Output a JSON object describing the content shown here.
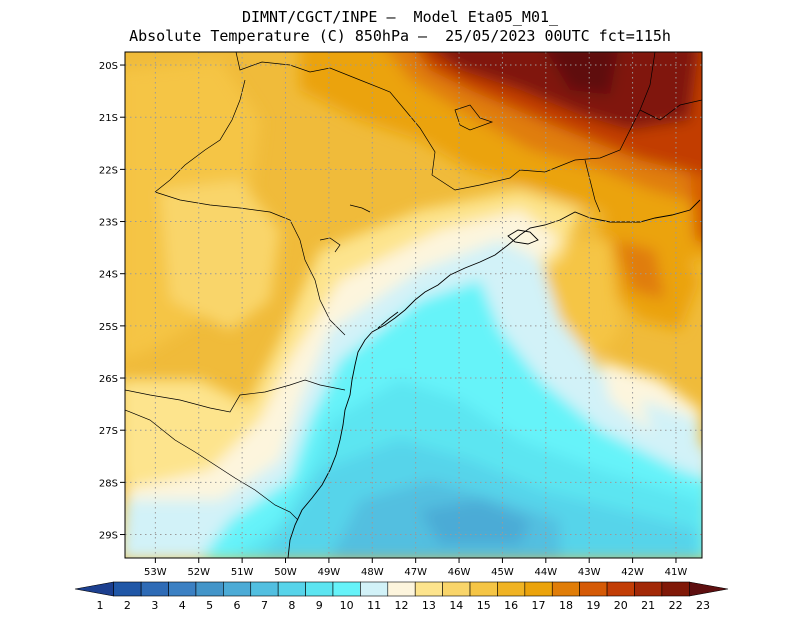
{
  "title": {
    "line1": "DIMNT/CGCT/INPE —  Model Eta05_M01_",
    "line2": "Absolute Temperature (C) 850hPa —  25/05/2023 00UTC fct=115h"
  },
  "map": {
    "lon_range": [
      -53.7,
      -40.4
    ],
    "lat_range": [
      -29.45,
      -19.75
    ],
    "lon_ticks": [
      "53W",
      "52W",
      "51W",
      "50W",
      "49W",
      "48W",
      "47W",
      "46W",
      "45W",
      "44W",
      "43W",
      "42W",
      "41W"
    ],
    "lat_ticks": [
      "20S",
      "21S",
      "22S",
      "23S",
      "24S",
      "25S",
      "26S",
      "27S",
      "28S",
      "29S"
    ],
    "grid": true
  },
  "colorbar": {
    "labels": [
      "1",
      "2",
      "3",
      "4",
      "5",
      "6",
      "7",
      "8",
      "9",
      "10",
      "11",
      "12",
      "13",
      "14",
      "15",
      "16",
      "17",
      "18",
      "19",
      "20",
      "21",
      "22",
      "23"
    ],
    "colors": [
      "#1c3f8f",
      "#2057a7",
      "#2e6bb6",
      "#3b80c3",
      "#4395c9",
      "#4cabd6",
      "#52bfe0",
      "#57d4ea",
      "#5ce5f1",
      "#66f3f9",
      "#d2f2f8",
      "#fdf5dd",
      "#fde48d",
      "#f9d56a",
      "#f5c545",
      "#f0b323",
      "#eba30b",
      "#e07d08",
      "#d55a06",
      "#c23d05",
      "#a22806",
      "#801807",
      "#5e0f10"
    ]
  }
}
